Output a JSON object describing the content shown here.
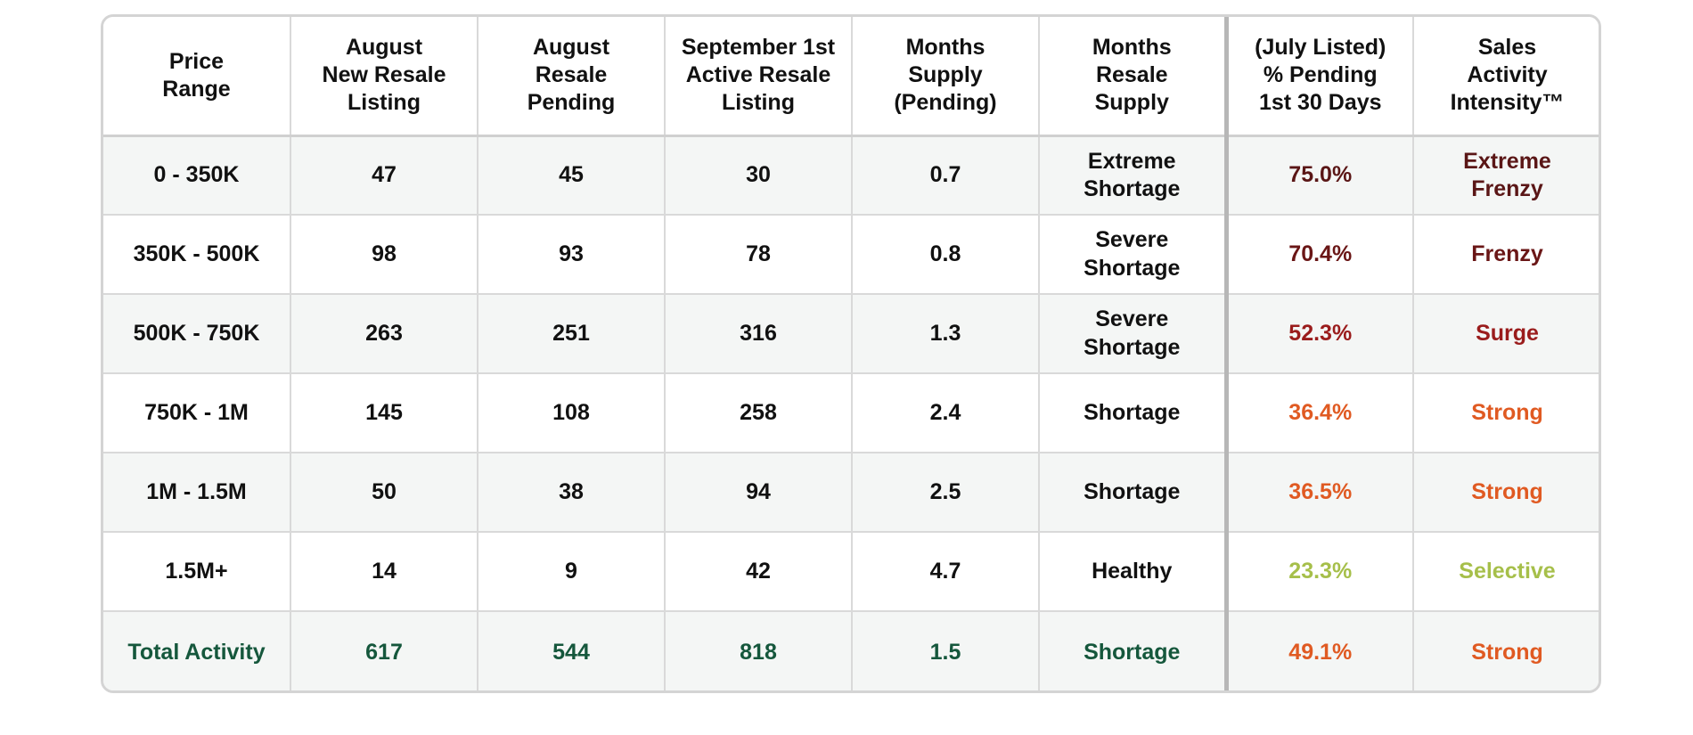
{
  "colors": {
    "extreme_frenzy": "#5a1616",
    "frenzy": "#6a1616",
    "surge": "#9a1c1c",
    "strong": "#e05a22",
    "selective": "#a6bf4a",
    "total_green": "#15573c"
  },
  "chart_data": {
    "type": "table",
    "columns": [
      "Price\nRange",
      "August\nNew Resale\nListing",
      "August\nResale\nPending",
      "September 1st\nActive Resale\nListing",
      "Months\nSupply\n(Pending)",
      "Months\nResale\nSupply",
      "(July Listed)\n% Pending\n1st 30 Days",
      "Sales\nActivity\nIntensity™"
    ],
    "rows": [
      {
        "range": "0 - 350K",
        "new_listing": "47",
        "pending": "45",
        "active": "30",
        "supply_pending": "0.7",
        "resale_supply": "Extreme\nShortage",
        "pct_pending": "75.0%",
        "intensity": "Extreme\nFrenzy",
        "color": "#5a1616"
      },
      {
        "range": "350K - 500K",
        "new_listing": "98",
        "pending": "93",
        "active": "78",
        "supply_pending": "0.8",
        "resale_supply": "Severe\nShortage",
        "pct_pending": "70.4%",
        "intensity": "Frenzy",
        "color": "#6a1616"
      },
      {
        "range": "500K - 750K",
        "new_listing": "263",
        "pending": "251",
        "active": "316",
        "supply_pending": "1.3",
        "resale_supply": "Severe\nShortage",
        "pct_pending": "52.3%",
        "intensity": "Surge",
        "color": "#9a1c1c"
      },
      {
        "range": "750K - 1M",
        "new_listing": "145",
        "pending": "108",
        "active": "258",
        "supply_pending": "2.4",
        "resale_supply": "Shortage",
        "pct_pending": "36.4%",
        "intensity": "Strong",
        "color": "#e05a22"
      },
      {
        "range": "1M - 1.5M",
        "new_listing": "50",
        "pending": "38",
        "active": "94",
        "supply_pending": "2.5",
        "resale_supply": "Shortage",
        "pct_pending": "36.5%",
        "intensity": "Strong",
        "color": "#e05a22"
      },
      {
        "range": "1.5M+",
        "new_listing": "14",
        "pending": "9",
        "active": "42",
        "supply_pending": "4.7",
        "resale_supply": "Healthy",
        "pct_pending": "23.3%",
        "intensity": "Selective",
        "color": "#a6bf4a"
      }
    ],
    "total": {
      "range": "Total Activity",
      "new_listing": "617",
      "pending": "544",
      "active": "818",
      "supply_pending": "1.5",
      "resale_supply": "Shortage",
      "pct_pending": "49.1%",
      "intensity": "Strong",
      "color": "#e05a22"
    }
  }
}
